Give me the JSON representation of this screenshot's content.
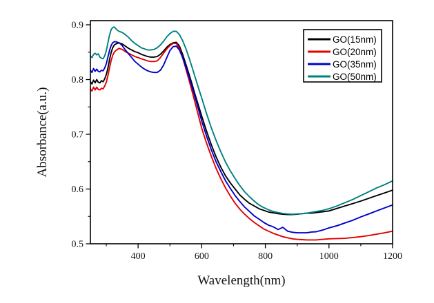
{
  "chart_data": {
    "type": "line",
    "title": "",
    "xlabel": "Wavelength(nm)",
    "ylabel": "Absorbance(a.u.)",
    "xlim": [
      250,
      1200
    ],
    "ylim": [
      0.5,
      0.9075
    ],
    "grid": false,
    "legend_position": "top-right",
    "x_major_ticks": [
      400,
      600,
      800,
      1000,
      1200
    ],
    "x_minor_ticks": [
      300,
      500,
      700,
      900,
      1100
    ],
    "y_major_ticks": [
      0.5,
      0.6,
      0.7,
      0.8,
      0.9
    ],
    "y_minor_ticks": [
      0.55,
      0.65,
      0.75,
      0.85
    ],
    "x": [
      250,
      255,
      260,
      265,
      270,
      275,
      280,
      285,
      290,
      295,
      300,
      305,
      310,
      315,
      320,
      325,
      330,
      335,
      340,
      345,
      350,
      355,
      360,
      370,
      380,
      390,
      400,
      410,
      420,
      430,
      440,
      450,
      460,
      470,
      480,
      490,
      500,
      510,
      520,
      530,
      540,
      550,
      560,
      570,
      580,
      590,
      600,
      615,
      630,
      645,
      660,
      675,
      690,
      705,
      720,
      735,
      750,
      765,
      780,
      795,
      810,
      825,
      840,
      855,
      870,
      885,
      900,
      915,
      930,
      945,
      960,
      980,
      1000,
      1025,
      1050,
      1075,
      1100,
      1125,
      1150,
      1175,
      1200
    ],
    "series": [
      {
        "name": "GO(15nm)",
        "color": "#000000",
        "values": [
          0.796,
          0.792,
          0.799,
          0.794,
          0.8,
          0.795,
          0.794,
          0.798,
          0.796,
          0.801,
          0.809,
          0.821,
          0.836,
          0.849,
          0.858,
          0.863,
          0.865,
          0.866,
          0.867,
          0.866,
          0.865,
          0.863,
          0.861,
          0.857,
          0.854,
          0.851,
          0.849,
          0.846,
          0.844,
          0.842,
          0.841,
          0.841,
          0.842,
          0.846,
          0.852,
          0.859,
          0.864,
          0.867,
          0.868,
          0.861,
          0.846,
          0.828,
          0.81,
          0.791,
          0.771,
          0.752,
          0.733,
          0.706,
          0.681,
          0.659,
          0.64,
          0.624,
          0.611,
          0.6,
          0.589,
          0.581,
          0.574,
          0.569,
          0.564,
          0.561,
          0.558,
          0.5565,
          0.555,
          0.554,
          0.5535,
          0.5535,
          0.554,
          0.555,
          0.556,
          0.556,
          0.557,
          0.5585,
          0.56,
          0.5645,
          0.569,
          0.5735,
          0.578,
          0.583,
          0.588,
          0.593,
          0.598
        ]
      },
      {
        "name": "GO(20nm)",
        "color": "#e00000",
        "values": [
          0.783,
          0.779,
          0.786,
          0.781,
          0.786,
          0.782,
          0.781,
          0.784,
          0.783,
          0.788,
          0.795,
          0.807,
          0.821,
          0.834,
          0.844,
          0.85,
          0.853,
          0.855,
          0.857,
          0.856,
          0.855,
          0.853,
          0.851,
          0.848,
          0.845,
          0.842,
          0.84,
          0.838,
          0.836,
          0.834,
          0.833,
          0.833,
          0.834,
          0.84,
          0.848,
          0.856,
          0.862,
          0.866,
          0.866,
          0.857,
          0.84,
          0.82,
          0.799,
          0.778,
          0.756,
          0.733,
          0.711,
          0.684,
          0.66,
          0.638,
          0.619,
          0.602,
          0.587,
          0.574,
          0.563,
          0.554,
          0.546,
          0.539,
          0.533,
          0.527,
          0.523,
          0.519,
          0.516,
          0.513,
          0.511,
          0.509,
          0.508,
          0.5075,
          0.507,
          0.507,
          0.507,
          0.508,
          0.509,
          0.5095,
          0.51,
          0.5115,
          0.513,
          0.515,
          0.5175,
          0.52,
          0.523
        ]
      },
      {
        "name": "GO(35nm)",
        "color": "#0000cc",
        "values": [
          0.817,
          0.813,
          0.82,
          0.815,
          0.819,
          0.815,
          0.814,
          0.817,
          0.816,
          0.821,
          0.829,
          0.841,
          0.853,
          0.862,
          0.867,
          0.869,
          0.869,
          0.868,
          0.867,
          0.865,
          0.862,
          0.858,
          0.854,
          0.847,
          0.84,
          0.833,
          0.828,
          0.823,
          0.819,
          0.816,
          0.814,
          0.813,
          0.813,
          0.817,
          0.826,
          0.84,
          0.853,
          0.86,
          0.861,
          0.854,
          0.84,
          0.823,
          0.805,
          0.786,
          0.766,
          0.745,
          0.724,
          0.697,
          0.672,
          0.65,
          0.632,
          0.615,
          0.601,
          0.588,
          0.577,
          0.567,
          0.559,
          0.551,
          0.545,
          0.539,
          0.534,
          0.531,
          0.526,
          0.53,
          0.523,
          0.521,
          0.52,
          0.52,
          0.52,
          0.5215,
          0.522,
          0.525,
          0.529,
          0.533,
          0.538,
          0.543,
          0.549,
          0.5545,
          0.56,
          0.5655,
          0.571
        ]
      },
      {
        "name": "GO(50nm)",
        "color": "#008080",
        "values": [
          0.843,
          0.84,
          0.846,
          0.848,
          0.845,
          0.847,
          0.841,
          0.839,
          0.838,
          0.843,
          0.853,
          0.867,
          0.881,
          0.891,
          0.895,
          0.896,
          0.893,
          0.89,
          0.888,
          0.887,
          0.886,
          0.884,
          0.882,
          0.877,
          0.871,
          0.866,
          0.862,
          0.858,
          0.856,
          0.854,
          0.854,
          0.855,
          0.858,
          0.863,
          0.87,
          0.878,
          0.884,
          0.888,
          0.888,
          0.882,
          0.871,
          0.857,
          0.84,
          0.822,
          0.803,
          0.784,
          0.766,
          0.738,
          0.712,
          0.689,
          0.668,
          0.649,
          0.633,
          0.619,
          0.606,
          0.595,
          0.586,
          0.578,
          0.571,
          0.566,
          0.562,
          0.559,
          0.557,
          0.5555,
          0.5545,
          0.554,
          0.5545,
          0.555,
          0.556,
          0.5575,
          0.559,
          0.561,
          0.564,
          0.569,
          0.575,
          0.581,
          0.588,
          0.595,
          0.602,
          0.608,
          0.615
        ]
      }
    ]
  }
}
